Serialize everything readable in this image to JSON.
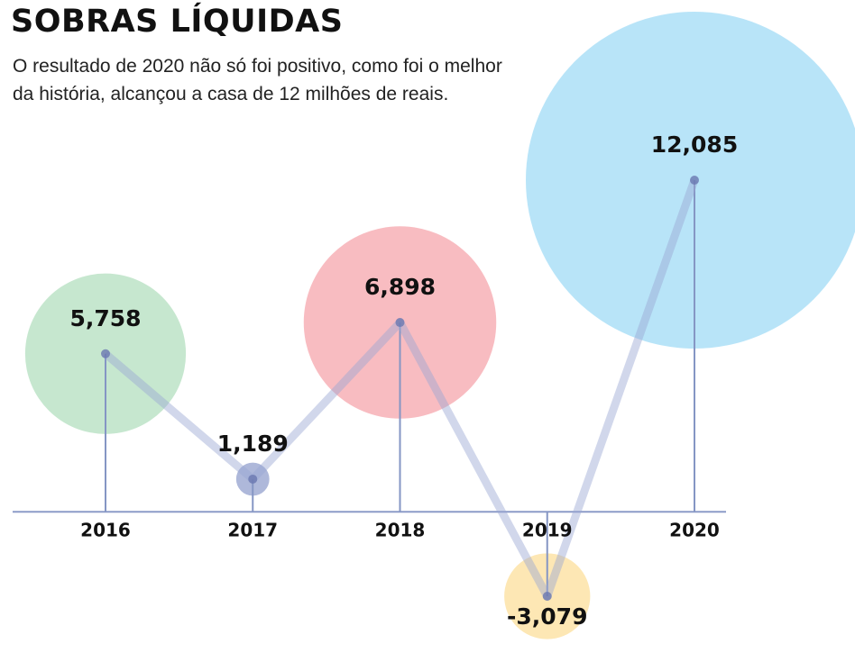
{
  "chart_data": {
    "type": "bubble",
    "title": "SOBRAS LÍQUIDAS",
    "subtitle": "O resultado de 2020 não só foi positivo, como foi o melhor da história, alcançou a casa de 12 milhões de reais.",
    "categories": [
      "2016",
      "2017",
      "2018",
      "2019",
      "2020"
    ],
    "values": [
      5758,
      1189,
      6898,
      -3079,
      12085
    ],
    "value_labels": [
      "5,758",
      "1,189",
      "6,898",
      "-3,079",
      "12,085"
    ],
    "colors": [
      "#c3e6cc",
      "#aab4d8",
      "#f8b8be",
      "#fde6b0",
      "#b4e3f8"
    ]
  }
}
